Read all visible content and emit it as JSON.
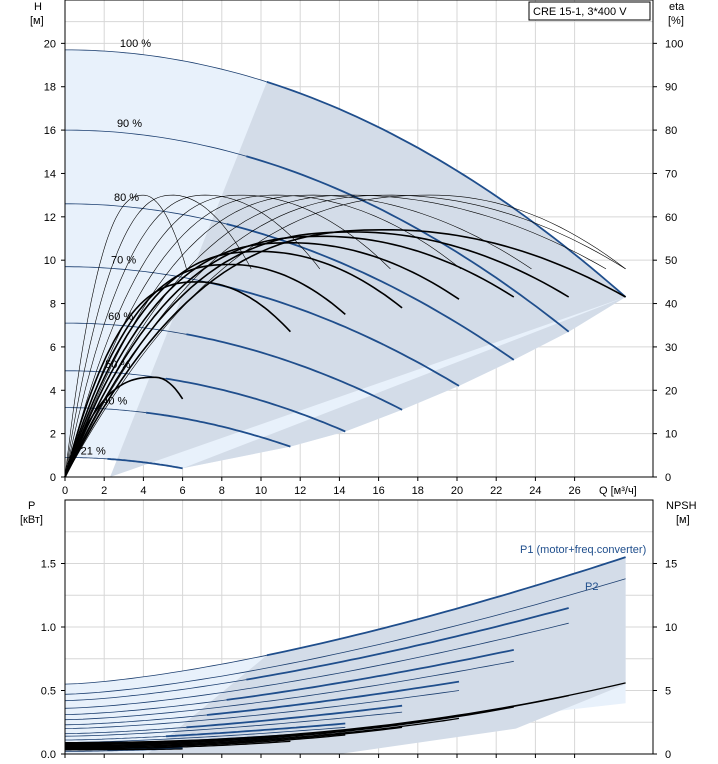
{
  "title": "CRE 15-1, 3*400 V",
  "colors": {
    "regionLight": "#e8f1fb",
    "regionDark": "#d3dce8",
    "headCurve": "#1f4e8c",
    "thinCurve": "#1c3f70",
    "etaCurve": "#000000",
    "npshCurve": "#000000",
    "p1Label": "#1f4e8c"
  },
  "chart_data": [
    {
      "type": "line",
      "name": "head-chart",
      "title": "CRE 15-1, 3*400 V",
      "xlabel": "Q [м³/ч]",
      "ylabel_left": [
        "H",
        "[м]"
      ],
      "ylabel_right": [
        "eta",
        "[%]"
      ],
      "xlim": [
        0,
        30
      ],
      "ylim": [
        0,
        22
      ],
      "y2lim": [
        0,
        110
      ],
      "xticks": [
        "0",
        "2",
        "4",
        "6",
        "8",
        "10",
        "12",
        "14",
        "16",
        "18",
        "20",
        "22",
        "24",
        "26"
      ],
      "yticks": [
        "0",
        "2",
        "4",
        "6",
        "8",
        "10",
        "12",
        "14",
        "16",
        "18",
        "20"
      ],
      "y2ticks": [
        "0",
        "10",
        "20",
        "30",
        "40",
        "50",
        "60",
        "70",
        "80",
        "90",
        "100"
      ],
      "qh_curves": [
        {
          "speed": "100 %",
          "shut_off_head": 19.7,
          "q_max": 28.6,
          "h_end": 8.3
        },
        {
          "speed": "90 %",
          "shut_off_head": 16.0,
          "q_max": 25.7,
          "h_end": 6.7
        },
        {
          "speed": "80 %",
          "shut_off_head": 12.6,
          "q_max": 22.9,
          "h_end": 5.4
        },
        {
          "speed": "70 %",
          "shut_off_head": 9.7,
          "q_max": 20.1,
          "h_end": 4.2
        },
        {
          "speed": "60 %",
          "shut_off_head": 7.1,
          "q_max": 17.2,
          "h_end": 3.1
        },
        {
          "speed": "50 %",
          "shut_off_head": 4.9,
          "q_max": 14.3,
          "h_end": 2.1
        },
        {
          "speed": "40 %",
          "shut_off_head": 3.2,
          "q_max": 11.5,
          "h_end": 1.4
        },
        {
          "speed": "21 %",
          "shut_off_head": 0.9,
          "q_max": 6.0,
          "h_end": 0.4
        }
      ],
      "eta_curves": [
        {
          "q_peak": 16.5,
          "eta_peak": 57,
          "q_end": 28.6,
          "eta_end": 41.5
        },
        {
          "q_peak": 14.8,
          "eta_peak": 56.5,
          "q_end": 25.7,
          "eta_end": 41.5
        },
        {
          "q_peak": 13.2,
          "eta_peak": 55.5,
          "q_end": 22.9,
          "eta_end": 41.5
        },
        {
          "q_peak": 11.6,
          "eta_peak": 54,
          "q_end": 20.1,
          "eta_end": 41
        },
        {
          "q_peak": 10.0,
          "eta_peak": 52,
          "q_end": 17.2,
          "eta_end": 39
        },
        {
          "q_peak": 8.5,
          "eta_peak": 49,
          "q_end": 14.3,
          "eta_end": 37.5
        },
        {
          "q_peak": 6.8,
          "eta_peak": 45,
          "q_end": 11.5,
          "eta_end": 33.5
        },
        {
          "q_peak": 4.6,
          "eta_peak": 23,
          "q_end": 6.0,
          "eta_end": 18
        }
      ]
    },
    {
      "type": "line",
      "name": "power-chart",
      "ylabel_left": [
        "P",
        "[кВт]"
      ],
      "ylabel_right": [
        "NPSH",
        "[м]"
      ],
      "xlim": [
        0,
        30
      ],
      "ylim": [
        0,
        2.0
      ],
      "y2lim": [
        0,
        20
      ],
      "yticks": [
        "0.0",
        "0.5",
        "1.0",
        "1.5"
      ],
      "y2ticks": [
        "0",
        "5",
        "10",
        "15"
      ],
      "labels": {
        "p1": "P1 (motor+freq.converter)",
        "p2": "P2"
      },
      "power_curves": [
        {
          "speed": "100 %",
          "p1_start": 0.55,
          "p1_end": 1.55,
          "p2_start": 0.47,
          "p2_end": 1.38,
          "q_max": 28.6
        },
        {
          "speed": "90 %",
          "p1_start": 0.42,
          "p1_end": 1.15,
          "p2_start": 0.36,
          "p2_end": 1.03,
          "q_max": 25.7
        },
        {
          "speed": "80 %",
          "p1_start": 0.31,
          "p1_end": 0.82,
          "p2_start": 0.27,
          "p2_end": 0.73,
          "q_max": 22.9
        },
        {
          "speed": "70 %",
          "p1_start": 0.23,
          "p1_end": 0.57,
          "p2_start": 0.2,
          "p2_end": 0.5,
          "q_max": 20.1
        },
        {
          "speed": "60 %",
          "p1_start": 0.16,
          "p1_end": 0.38,
          "p2_start": 0.14,
          "p2_end": 0.33,
          "q_max": 17.2
        },
        {
          "speed": "50 %",
          "p1_start": 0.11,
          "p1_end": 0.24,
          "p2_start": 0.09,
          "p2_end": 0.21,
          "q_max": 14.3
        },
        {
          "speed": "40 %",
          "p1_start": 0.07,
          "p1_end": 0.15,
          "p2_start": 0.06,
          "p2_end": 0.13,
          "q_max": 11.5
        },
        {
          "speed": "21 %",
          "p1_start": 0.03,
          "p1_end": 0.05,
          "p2_start": 0.02,
          "p2_end": 0.04,
          "q_max": 6.0
        }
      ],
      "npsh_curves": [
        {
          "q_max": 28.6,
          "npsh_end": 5.6
        },
        {
          "q_max": 25.7,
          "npsh_end": 4.6
        },
        {
          "q_max": 22.9,
          "npsh_end": 3.7
        },
        {
          "q_max": 20.1,
          "npsh_end": 2.8
        },
        {
          "q_max": 17.2,
          "npsh_end": 2.1
        },
        {
          "q_max": 14.3,
          "npsh_end": 1.5
        },
        {
          "q_max": 11.5,
          "npsh_end": 1.0
        },
        {
          "q_max": 6.0,
          "npsh_end": 0.4
        }
      ]
    }
  ]
}
